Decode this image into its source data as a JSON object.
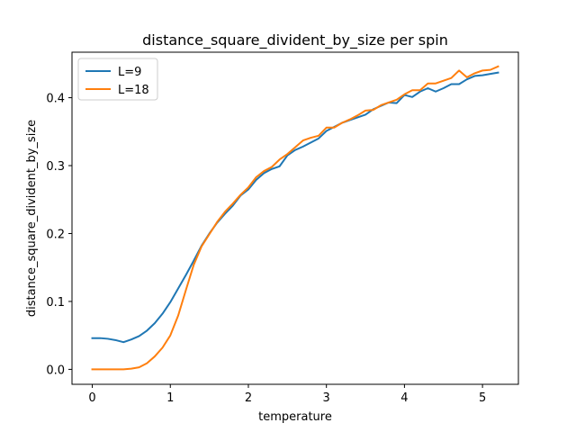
{
  "chart_data": {
    "type": "line",
    "title": "distance_square_divident_by_size per spin",
    "xlabel": "temperature",
    "ylabel": "distance_square_divident_by_size",
    "xlim": [
      -0.26,
      5.46
    ],
    "ylim": [
      -0.022,
      0.467
    ],
    "xticks": [
      0,
      1,
      2,
      3,
      4,
      5
    ],
    "yticks": [
      0.0,
      0.1,
      0.2,
      0.3,
      0.4
    ],
    "ytick_labels": [
      "0.0",
      "0.1",
      "0.2",
      "0.3",
      "0.4"
    ],
    "legend_position": "upper-left",
    "grid": false,
    "series": [
      {
        "name": "L=9",
        "color": "#1f77b4",
        "x": [
          0,
          0.1,
          0.2,
          0.3,
          0.4,
          0.5,
          0.6,
          0.7,
          0.8,
          0.9,
          1.0,
          1.1,
          1.2,
          1.3,
          1.4,
          1.5,
          1.6,
          1.7,
          1.8,
          1.9,
          2.0,
          2.1,
          2.2,
          2.3,
          2.4,
          2.5,
          2.6,
          2.7,
          2.8,
          2.9,
          3.0,
          3.1,
          3.2,
          3.3,
          3.4,
          3.5,
          3.6,
          3.7,
          3.8,
          3.9,
          4.0,
          4.1,
          4.2,
          4.3,
          4.4,
          4.5,
          4.6,
          4.7,
          4.8,
          4.9,
          5.0,
          5.1,
          5.2
        ],
        "y": [
          0.046,
          0.046,
          0.045,
          0.043,
          0.04,
          0.044,
          0.049,
          0.057,
          0.068,
          0.082,
          0.099,
          0.119,
          0.139,
          0.16,
          0.182,
          0.2,
          0.216,
          0.229,
          0.241,
          0.256,
          0.265,
          0.279,
          0.289,
          0.295,
          0.299,
          0.315,
          0.323,
          0.328,
          0.334,
          0.34,
          0.351,
          0.357,
          0.363,
          0.367,
          0.371,
          0.375,
          0.383,
          0.388,
          0.393,
          0.392,
          0.404,
          0.401,
          0.409,
          0.414,
          0.409,
          0.414,
          0.42,
          0.42,
          0.427,
          0.432,
          0.433,
          0.435,
          0.437
        ]
      },
      {
        "name": "L=18",
        "color": "#ff7f0e",
        "x": [
          0,
          0.1,
          0.2,
          0.3,
          0.4,
          0.5,
          0.6,
          0.7,
          0.8,
          0.9,
          1.0,
          1.1,
          1.2,
          1.3,
          1.4,
          1.5,
          1.6,
          1.7,
          1.8,
          1.9,
          2.0,
          2.1,
          2.2,
          2.3,
          2.4,
          2.5,
          2.6,
          2.7,
          2.8,
          2.9,
          3.0,
          3.1,
          3.2,
          3.3,
          3.4,
          3.5,
          3.6,
          3.7,
          3.8,
          3.9,
          4.0,
          4.1,
          4.2,
          4.3,
          4.4,
          4.5,
          4.6,
          4.7,
          4.8,
          4.9,
          5.0,
          5.1,
          5.2
        ],
        "y": [
          0.0,
          0.0,
          0.0,
          0.0,
          0.0,
          0.001,
          0.003,
          0.009,
          0.019,
          0.032,
          0.05,
          0.079,
          0.117,
          0.154,
          0.181,
          0.199,
          0.217,
          0.232,
          0.244,
          0.257,
          0.268,
          0.283,
          0.292,
          0.298,
          0.309,
          0.317,
          0.327,
          0.337,
          0.341,
          0.344,
          0.356,
          0.356,
          0.363,
          0.368,
          0.374,
          0.381,
          0.382,
          0.389,
          0.393,
          0.397,
          0.405,
          0.411,
          0.411,
          0.421,
          0.421,
          0.425,
          0.429,
          0.44,
          0.43,
          0.436,
          0.44,
          0.441,
          0.446
        ]
      }
    ]
  }
}
